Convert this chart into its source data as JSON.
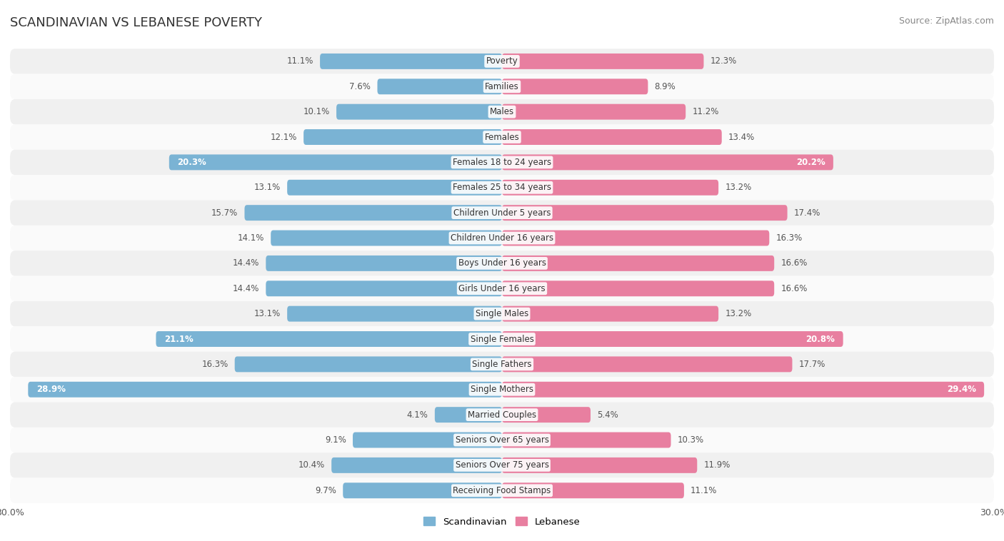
{
  "title": "SCANDINAVIAN VS LEBANESE POVERTY",
  "source": "Source: ZipAtlas.com",
  "categories": [
    "Poverty",
    "Families",
    "Males",
    "Females",
    "Females 18 to 24 years",
    "Females 25 to 34 years",
    "Children Under 5 years",
    "Children Under 16 years",
    "Boys Under 16 years",
    "Girls Under 16 years",
    "Single Males",
    "Single Females",
    "Single Fathers",
    "Single Mothers",
    "Married Couples",
    "Seniors Over 65 years",
    "Seniors Over 75 years",
    "Receiving Food Stamps"
  ],
  "scandinavian": [
    11.1,
    7.6,
    10.1,
    12.1,
    20.3,
    13.1,
    15.7,
    14.1,
    14.4,
    14.4,
    13.1,
    21.1,
    16.3,
    28.9,
    4.1,
    9.1,
    10.4,
    9.7
  ],
  "lebanese": [
    12.3,
    8.9,
    11.2,
    13.4,
    20.2,
    13.2,
    17.4,
    16.3,
    16.6,
    16.6,
    13.2,
    20.8,
    17.7,
    29.4,
    5.4,
    10.3,
    11.9,
    11.1
  ],
  "scandinavian_color": "#7ab3d4",
  "lebanese_color": "#e87fa0",
  "highlight_threshold": 18.0,
  "bar_height": 0.62,
  "xlim": 30.0,
  "row_colors_odd": "#f0f0f0",
  "row_colors_even": "#fafafa",
  "bg_color": "#ffffff",
  "legend_scandinavian": "Scandinavian",
  "legend_lebanese": "Lebanese",
  "title_fontsize": 13,
  "source_fontsize": 9,
  "label_fontsize": 8.5,
  "category_fontsize": 8.5
}
